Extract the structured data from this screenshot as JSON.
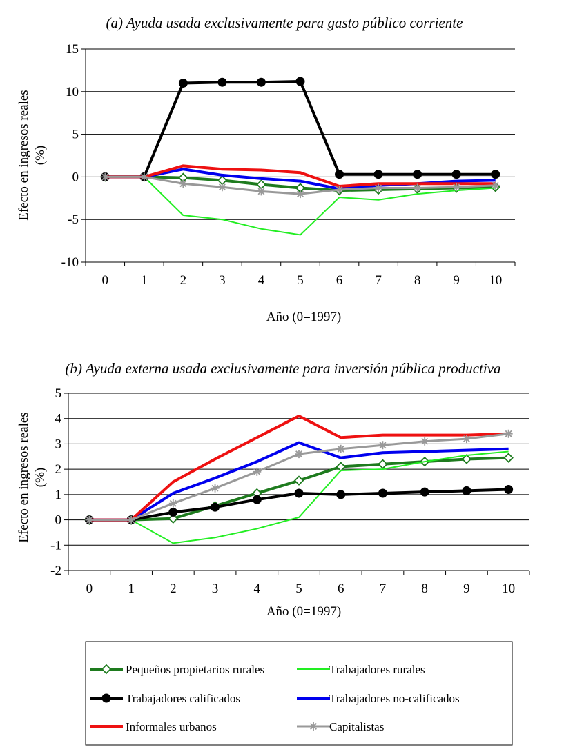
{
  "chart_data": [
    {
      "type": "line",
      "title": "(a)   Ayuda usada exclusivamente para gasto público corriente",
      "xlabel": "Año (0=1997)",
      "ylabel_line1": "Efecto en ingresos reales",
      "ylabel_line2": "(%)",
      "ylim": [
        -10,
        15
      ],
      "yticks": [
        -10,
        -5,
        0,
        5,
        10,
        15
      ],
      "categories": [
        "0",
        "1",
        "2",
        "3",
        "4",
        "5",
        "6",
        "7",
        "8",
        "9",
        "10"
      ],
      "grid": "horizontal",
      "series": [
        {
          "name": "Pequeños propietarios rurales",
          "values": [
            0,
            0,
            -0.1,
            -0.4,
            -0.9,
            -1.3,
            -1.6,
            -1.5,
            -1.4,
            -1.3,
            -1.2
          ]
        },
        {
          "name": "Trabajadores rurales",
          "values": [
            0,
            0,
            -4.5,
            -5.0,
            -6.1,
            -6.8,
            -2.4,
            -2.7,
            -2.0,
            -1.6,
            -1.3
          ]
        },
        {
          "name": "Trabajadores calificados",
          "values": [
            0,
            0,
            11.0,
            11.1,
            11.1,
            11.2,
            0.3,
            0.3,
            0.3,
            0.3,
            0.3
          ]
        },
        {
          "name": "Trabajadores no-calificados",
          "values": [
            0,
            0,
            0.9,
            0.2,
            -0.2,
            -0.5,
            -1.4,
            -1.0,
            -0.8,
            -0.5,
            -0.4
          ]
        },
        {
          "name": "Informales urbanos",
          "values": [
            0,
            0,
            1.3,
            0.9,
            0.8,
            0.5,
            -1.1,
            -0.8,
            -0.8,
            -0.8,
            -0.8
          ]
        },
        {
          "name": "Capitalistas",
          "values": [
            0,
            0,
            -0.8,
            -1.2,
            -1.7,
            -2.0,
            -1.5,
            -1.3,
            -1.3,
            -1.2,
            -1.0
          ]
        }
      ]
    },
    {
      "type": "line",
      "title": "(b) Ayuda externa usada exclusivamente para inversión pública productiva",
      "xlabel": "Año (0=1997)",
      "ylabel_line1": "Efecto en ingresos reales",
      "ylabel_line2": "(%)",
      "ylim": [
        -2,
        5
      ],
      "yticks": [
        -2,
        -1,
        0,
        1,
        2,
        3,
        4,
        5
      ],
      "categories": [
        "0",
        "1",
        "2",
        "3",
        "4",
        "5",
        "6",
        "7",
        "8",
        "9",
        "10"
      ],
      "grid": "horizontal",
      "series": [
        {
          "name": "Pequeños propietarios rurales",
          "values": [
            0,
            0,
            0.05,
            0.55,
            1.05,
            1.55,
            2.1,
            2.2,
            2.3,
            2.4,
            2.45
          ]
        },
        {
          "name": "Trabajadores rurales",
          "values": [
            0,
            0,
            -0.92,
            -0.7,
            -0.35,
            0.1,
            1.95,
            2.0,
            2.3,
            2.55,
            2.7
          ]
        },
        {
          "name": "Trabajadores calificados",
          "values": [
            0,
            0,
            0.3,
            0.5,
            0.8,
            1.05,
            1.0,
            1.05,
            1.1,
            1.15,
            1.2
          ]
        },
        {
          "name": "Trabajadores no-calificados",
          "values": [
            0,
            0,
            1.05,
            1.65,
            2.3,
            3.05,
            2.45,
            2.65,
            2.7,
            2.75,
            2.8
          ]
        },
        {
          "name": "Informales urbanos",
          "values": [
            0,
            0,
            1.5,
            2.4,
            3.25,
            4.1,
            3.25,
            3.35,
            3.35,
            3.35,
            3.4
          ]
        },
        {
          "name": "Capitalistas",
          "values": [
            0,
            0,
            0.65,
            1.25,
            1.9,
            2.6,
            2.8,
            2.95,
            3.1,
            3.2,
            3.4
          ]
        }
      ]
    }
  ],
  "series_styles": [
    {
      "color": "#1e7b1e",
      "width": 4,
      "marker": "diamond"
    },
    {
      "color": "#22ee22",
      "width": 2,
      "marker": "none"
    },
    {
      "color": "#000000",
      "width": 4,
      "marker": "circle"
    },
    {
      "color": "#0000ee",
      "width": 4,
      "marker": "none"
    },
    {
      "color": "#ee1111",
      "width": 4,
      "marker": "none"
    },
    {
      "color": "#999999",
      "width": 3,
      "marker": "star"
    }
  ],
  "legend": {
    "placement": "bottom",
    "columns": 2,
    "items": [
      "Pequeños propietarios rurales",
      "Trabajadores rurales",
      "Trabajadores calificados",
      "Trabajadores no-calificados",
      "Informales urbanos",
      "Capitalistas"
    ]
  }
}
